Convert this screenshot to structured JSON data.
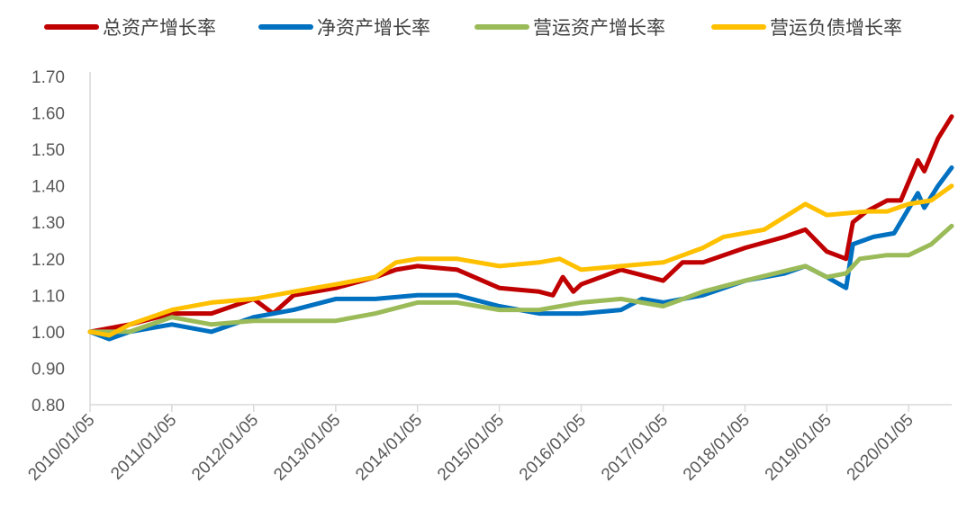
{
  "chart_data": {
    "type": "line",
    "title": "",
    "xlabel": "",
    "ylabel": "",
    "ylim": [
      0.8,
      1.7
    ],
    "yticks": [
      "0.80",
      "0.90",
      "1.00",
      "1.10",
      "1.20",
      "1.30",
      "1.40",
      "1.50",
      "1.60",
      "1.70"
    ],
    "xlim": [
      "2010-01-05",
      "2020-07-15"
    ],
    "xticks": [
      "2010/01/05",
      "2011/01/05",
      "2012/01/05",
      "2013/01/05",
      "2014/01/05",
      "2015/01/05",
      "2016/01/05",
      "2017/01/05",
      "2018/01/05",
      "2019/01/05",
      "2020/01/05"
    ],
    "grid": false,
    "legend_position": "top",
    "series": [
      {
        "name": "总资产增长率",
        "color": "#C00000",
        "points": [
          [
            "2010-01-05",
            1.0
          ],
          [
            "2010-07-01",
            1.02
          ],
          [
            "2011-01-05",
            1.05
          ],
          [
            "2011-07-01",
            1.05
          ],
          [
            "2012-01-05",
            1.09
          ],
          [
            "2012-04-01",
            1.05
          ],
          [
            "2012-07-01",
            1.1
          ],
          [
            "2013-01-05",
            1.12
          ],
          [
            "2013-07-01",
            1.15
          ],
          [
            "2013-10-01",
            1.17
          ],
          [
            "2014-01-05",
            1.18
          ],
          [
            "2014-07-01",
            1.17
          ],
          [
            "2015-01-05",
            1.12
          ],
          [
            "2015-07-01",
            1.11
          ],
          [
            "2015-09-01",
            1.1
          ],
          [
            "2015-10-15",
            1.15
          ],
          [
            "2015-12-01",
            1.11
          ],
          [
            "2016-01-05",
            1.13
          ],
          [
            "2016-07-01",
            1.17
          ],
          [
            "2017-01-05",
            1.14
          ],
          [
            "2017-04-01",
            1.19
          ],
          [
            "2017-07-01",
            1.19
          ],
          [
            "2018-01-05",
            1.23
          ],
          [
            "2018-07-01",
            1.26
          ],
          [
            "2018-10-01",
            1.28
          ],
          [
            "2019-01-05",
            1.22
          ],
          [
            "2019-04-01",
            1.2
          ],
          [
            "2019-05-01",
            1.3
          ],
          [
            "2019-07-01",
            1.33
          ],
          [
            "2019-10-01",
            1.36
          ],
          [
            "2019-12-01",
            1.36
          ],
          [
            "2020-02-15",
            1.47
          ],
          [
            "2020-03-15",
            1.44
          ],
          [
            "2020-05-15",
            1.53
          ],
          [
            "2020-07-15",
            1.59
          ]
        ]
      },
      {
        "name": "净资产增长率",
        "color": "#0070C0",
        "points": [
          [
            "2010-01-05",
            1.0
          ],
          [
            "2010-04-01",
            0.98
          ],
          [
            "2010-07-01",
            1.0
          ],
          [
            "2011-01-05",
            1.02
          ],
          [
            "2011-07-01",
            1.0
          ],
          [
            "2012-01-05",
            1.04
          ],
          [
            "2012-07-01",
            1.06
          ],
          [
            "2013-01-05",
            1.09
          ],
          [
            "2013-07-01",
            1.09
          ],
          [
            "2014-01-05",
            1.1
          ],
          [
            "2014-07-01",
            1.1
          ],
          [
            "2015-01-05",
            1.07
          ],
          [
            "2015-07-01",
            1.05
          ],
          [
            "2015-10-01",
            1.05
          ],
          [
            "2016-01-05",
            1.05
          ],
          [
            "2016-07-01",
            1.06
          ],
          [
            "2016-10-01",
            1.09
          ],
          [
            "2017-01-05",
            1.08
          ],
          [
            "2017-07-01",
            1.1
          ],
          [
            "2018-01-05",
            1.14
          ],
          [
            "2018-07-01",
            1.16
          ],
          [
            "2018-10-01",
            1.18
          ],
          [
            "2019-01-05",
            1.15
          ],
          [
            "2019-04-01",
            1.12
          ],
          [
            "2019-05-01",
            1.24
          ],
          [
            "2019-08-01",
            1.26
          ],
          [
            "2019-11-01",
            1.27
          ],
          [
            "2020-02-15",
            1.38
          ],
          [
            "2020-03-15",
            1.34
          ],
          [
            "2020-05-15",
            1.4
          ],
          [
            "2020-07-15",
            1.45
          ]
        ]
      },
      {
        "name": "营运资产增长率",
        "color": "#9BBB59",
        "points": [
          [
            "2010-01-05",
            1.0
          ],
          [
            "2010-07-01",
            1.0
          ],
          [
            "2011-01-05",
            1.04
          ],
          [
            "2011-07-01",
            1.02
          ],
          [
            "2012-01-05",
            1.03
          ],
          [
            "2012-07-01",
            1.03
          ],
          [
            "2013-01-05",
            1.03
          ],
          [
            "2013-07-01",
            1.05
          ],
          [
            "2014-01-05",
            1.08
          ],
          [
            "2014-07-01",
            1.08
          ],
          [
            "2015-01-05",
            1.06
          ],
          [
            "2015-07-01",
            1.06
          ],
          [
            "2016-01-05",
            1.08
          ],
          [
            "2016-07-01",
            1.09
          ],
          [
            "2017-01-05",
            1.07
          ],
          [
            "2017-07-01",
            1.11
          ],
          [
            "2018-01-05",
            1.14
          ],
          [
            "2018-10-01",
            1.18
          ],
          [
            "2019-01-05",
            1.15
          ],
          [
            "2019-04-01",
            1.16
          ],
          [
            "2019-06-01",
            1.2
          ],
          [
            "2019-10-01",
            1.21
          ],
          [
            "2020-01-05",
            1.21
          ],
          [
            "2020-04-15",
            1.24
          ],
          [
            "2020-07-15",
            1.29
          ]
        ]
      },
      {
        "name": "营运负债增长率",
        "color": "#FFC000",
        "points": [
          [
            "2010-01-05",
            1.0
          ],
          [
            "2010-04-01",
            0.99
          ],
          [
            "2010-07-01",
            1.02
          ],
          [
            "2011-01-05",
            1.06
          ],
          [
            "2011-07-01",
            1.08
          ],
          [
            "2012-01-05",
            1.09
          ],
          [
            "2012-07-01",
            1.11
          ],
          [
            "2013-01-05",
            1.13
          ],
          [
            "2013-07-01",
            1.15
          ],
          [
            "2013-10-01",
            1.19
          ],
          [
            "2014-01-05",
            1.2
          ],
          [
            "2014-07-01",
            1.2
          ],
          [
            "2015-01-05",
            1.18
          ],
          [
            "2015-07-01",
            1.19
          ],
          [
            "2015-10-01",
            1.2
          ],
          [
            "2016-01-05",
            1.17
          ],
          [
            "2016-07-01",
            1.18
          ],
          [
            "2017-01-05",
            1.19
          ],
          [
            "2017-07-01",
            1.23
          ],
          [
            "2017-10-01",
            1.26
          ],
          [
            "2018-04-01",
            1.28
          ],
          [
            "2018-10-01",
            1.35
          ],
          [
            "2019-01-05",
            1.32
          ],
          [
            "2019-07-01",
            1.33
          ],
          [
            "2019-10-01",
            1.33
          ],
          [
            "2020-01-05",
            1.35
          ],
          [
            "2020-04-15",
            1.36
          ],
          [
            "2020-07-15",
            1.4
          ]
        ]
      }
    ]
  }
}
